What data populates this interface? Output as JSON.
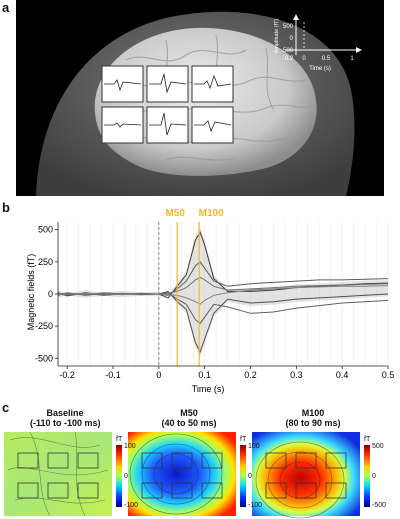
{
  "panel_labels": {
    "a": "a",
    "b": "b",
    "c": "c"
  },
  "inset": {
    "ylabel": "Amplitude (fT)",
    "xlabel": "Time (s)",
    "y_ticks": [
      "500",
      "0",
      "-500"
    ],
    "x_ticks": [
      "-0.2",
      "0",
      "0.5",
      "1"
    ]
  },
  "chart_data": {
    "type": "line",
    "title": "",
    "xlabel": "Time (s)",
    "ylabel": "Magnetic fields (fT)",
    "xlim": [
      -0.22,
      0.5
    ],
    "ylim": [
      -560,
      560
    ],
    "x_ticks": [
      "-0.2",
      "-0.1",
      "0",
      "0.1",
      "0.2",
      "0.3",
      "0.4",
      "0.5"
    ],
    "y_ticks": [
      "500",
      "250",
      "0",
      "-250",
      "-500"
    ],
    "grid": "vertical",
    "annotations": [
      {
        "label": "M50",
        "x": 0.04,
        "color": "#f2b829"
      },
      {
        "label": "M100",
        "x": 0.088,
        "color": "#f2b829"
      }
    ],
    "baseline_marker_x": 0,
    "series": [
      {
        "x": [
          -0.22,
          -0.2,
          -0.16,
          -0.12,
          -0.08,
          -0.04,
          0,
          0.02,
          0.04,
          0.06,
          0.08,
          0.09,
          0.1,
          0.12,
          0.15,
          0.2,
          0.25,
          0.3,
          0.35,
          0.4,
          0.45,
          0.5
        ],
        "y": [
          10,
          -15,
          10,
          -10,
          5,
          -5,
          0,
          -30,
          60,
          150,
          420,
          480,
          380,
          120,
          20,
          20,
          30,
          50,
          60,
          70,
          80,
          85
        ]
      },
      {
        "x": [
          -0.22,
          -0.2,
          -0.16,
          -0.12,
          -0.08,
          -0.04,
          0,
          0.02,
          0.04,
          0.06,
          0.08,
          0.09,
          0.1,
          0.12,
          0.15,
          0.2,
          0.25,
          0.3,
          0.35,
          0.4,
          0.45,
          0.5
        ],
        "y": [
          -10,
          10,
          -10,
          5,
          -5,
          5,
          0,
          20,
          -60,
          -120,
          -380,
          -450,
          -350,
          -150,
          -40,
          -70,
          -60,
          -40,
          -30,
          -20,
          -10,
          0
        ]
      },
      {
        "x": [
          -0.22,
          -0.2,
          -0.16,
          -0.12,
          -0.08,
          -0.04,
          0,
          0.02,
          0.04,
          0.06,
          0.08,
          0.09,
          0.1,
          0.12,
          0.15,
          0.2,
          0.25,
          0.3,
          0.35,
          0.4,
          0.45,
          0.5
        ],
        "y": [
          0,
          -10,
          5,
          -10,
          0,
          -5,
          0,
          -10,
          40,
          100,
          220,
          250,
          200,
          100,
          60,
          80,
          90,
          100,
          110,
          110,
          115,
          120
        ]
      },
      {
        "x": [
          -0.22,
          -0.2,
          -0.16,
          -0.12,
          -0.08,
          -0.04,
          0,
          0.02,
          0.04,
          0.06,
          0.08,
          0.09,
          0.1,
          0.12,
          0.15,
          0.2,
          0.25,
          0.3,
          0.35,
          0.4,
          0.45,
          0.5
        ],
        "y": [
          0,
          5,
          -5,
          10,
          0,
          5,
          0,
          10,
          -40,
          -80,
          -200,
          -230,
          -180,
          -80,
          -100,
          -150,
          -140,
          -110,
          -90,
          -70,
          -60,
          -50
        ]
      },
      {
        "x": [
          -0.22,
          -0.2,
          -0.16,
          -0.12,
          -0.08,
          -0.04,
          0,
          0.02,
          0.04,
          0.06,
          0.08,
          0.09,
          0.1,
          0.12,
          0.15,
          0.2,
          0.25,
          0.3,
          0.35,
          0.4,
          0.45,
          0.5
        ],
        "y": [
          5,
          0,
          -5,
          0,
          5,
          0,
          0,
          5,
          20,
          50,
          110,
          130,
          110,
          60,
          30,
          40,
          50,
          60,
          65,
          70,
          75,
          80
        ]
      },
      {
        "x": [
          -0.22,
          -0.2,
          -0.16,
          -0.12,
          -0.08,
          -0.04,
          0,
          0.02,
          0.04,
          0.06,
          0.08,
          0.09,
          0.1,
          0.12,
          0.15,
          0.2,
          0.25,
          0.3,
          0.35,
          0.4,
          0.45,
          0.5
        ],
        "y": [
          -5,
          0,
          5,
          0,
          -5,
          0,
          0,
          -5,
          -10,
          -30,
          -60,
          -80,
          -50,
          -10,
          10,
          30,
          40,
          50,
          55,
          60,
          60,
          65
        ]
      }
    ]
  },
  "maps": [
    {
      "title_line1": "Baseline",
      "title_line2": "(-110 to -100 ms)",
      "unit": "fT",
      "ticks": [
        "100",
        "0",
        "-100"
      ],
      "style": "baseline"
    },
    {
      "title_line1": "M50",
      "title_line2": "(40 to 50 ms)",
      "unit": "fT",
      "ticks": [
        "100",
        "0",
        "-100"
      ],
      "style": "negative"
    },
    {
      "title_line1": "M100",
      "title_line2": "(80 to 90 ms)",
      "unit": "fT",
      "ticks": [
        "500",
        "0",
        "-500"
      ],
      "style": "positive"
    }
  ]
}
